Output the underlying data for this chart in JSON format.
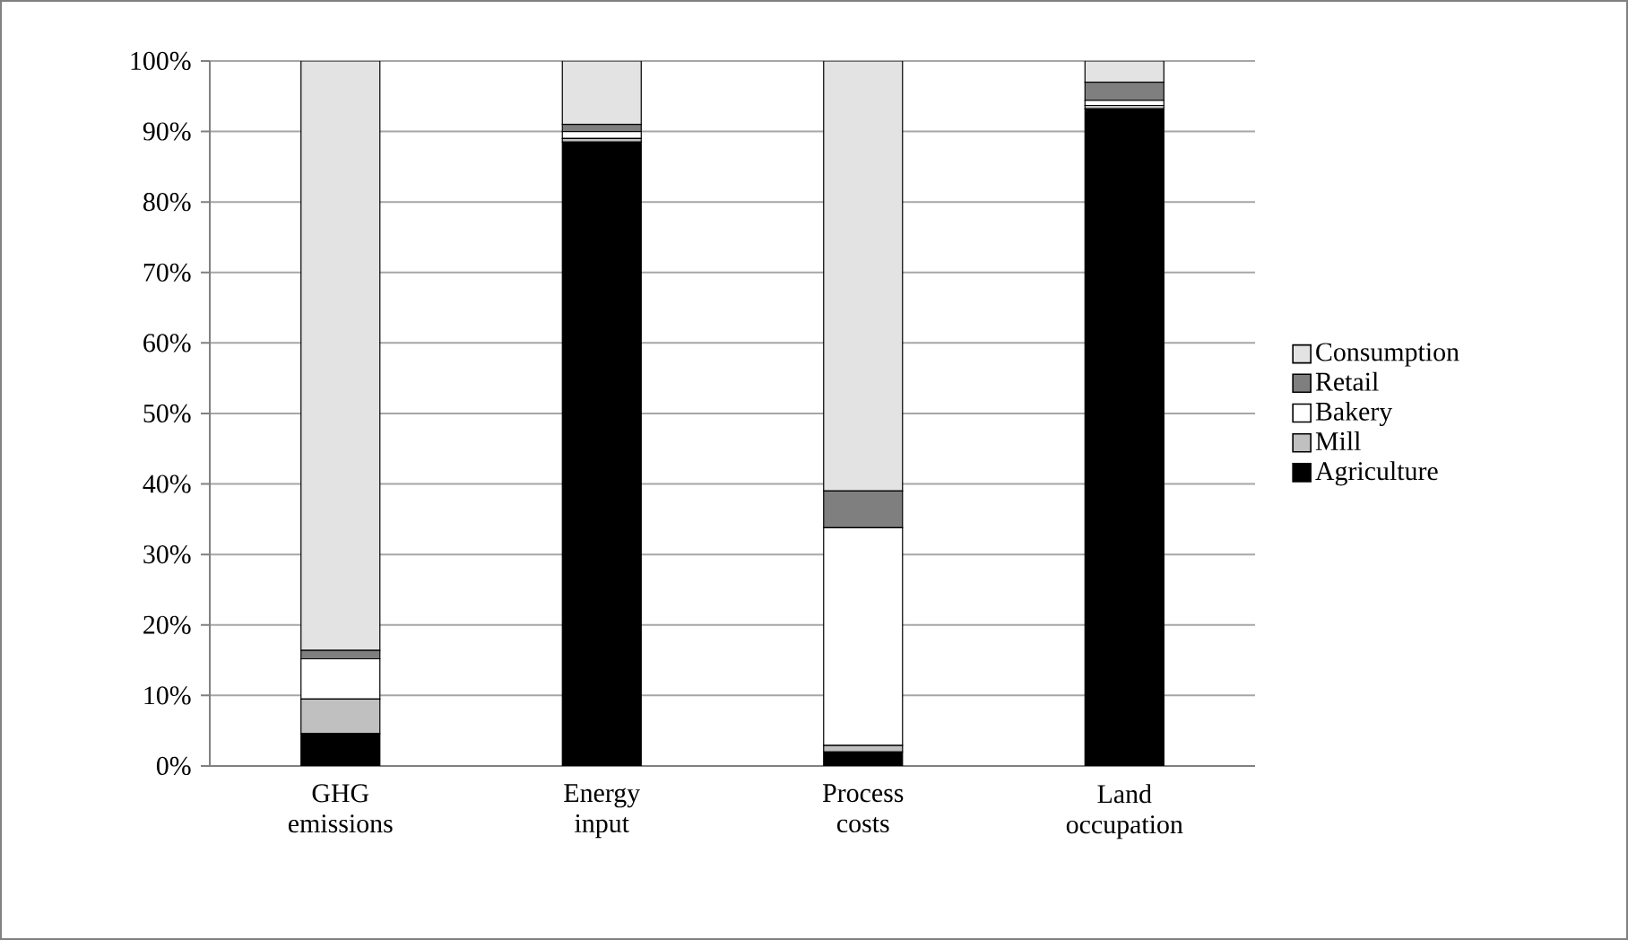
{
  "chart_data": {
    "type": "bar",
    "stacked": true,
    "categories": [
      "GHG emissions",
      "Energy input",
      "Process costs",
      "Land occupation"
    ],
    "series": [
      {
        "name": "Agriculture",
        "color": "#000000",
        "values": [
          4.6,
          88.5,
          2.0,
          93.2
        ]
      },
      {
        "name": "Mill",
        "color": "#c0c0c0",
        "values": [
          4.9,
          0.5,
          0.9,
          0.5
        ]
      },
      {
        "name": "Bakery",
        "color": "#ffffff",
        "values": [
          5.7,
          1.0,
          30.9,
          0.7
        ]
      },
      {
        "name": "Retail",
        "color": "#7f7f7f",
        "values": [
          1.2,
          1.0,
          5.2,
          2.6
        ]
      },
      {
        "name": "Consumption",
        "color": "#e3e3e3",
        "values": [
          83.6,
          9.0,
          61.0,
          3.0
        ]
      }
    ],
    "ylim": [
      0,
      100
    ],
    "yticks": [
      {
        "value": 0,
        "label": "0%"
      },
      {
        "value": 10,
        "label": "10%"
      },
      {
        "value": 20,
        "label": "20%"
      },
      {
        "value": 30,
        "label": "30%"
      },
      {
        "value": 40,
        "label": "40%"
      },
      {
        "value": 50,
        "label": "50%"
      },
      {
        "value": 60,
        "label": "60%"
      },
      {
        "value": 70,
        "label": "70%"
      },
      {
        "value": 80,
        "label": "80%"
      },
      {
        "value": 90,
        "label": "90%"
      },
      {
        "value": 100,
        "label": "100%"
      }
    ],
    "grid": "y",
    "legend": "right"
  }
}
